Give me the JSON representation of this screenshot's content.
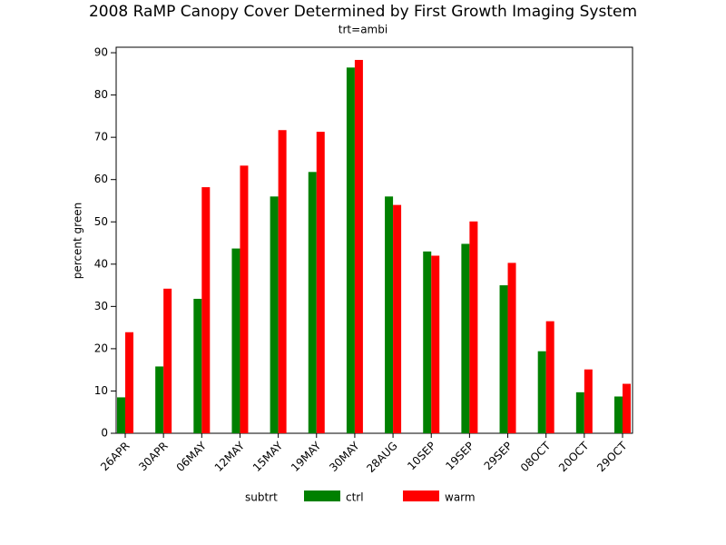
{
  "chart_data": {
    "type": "bar",
    "title": "2008 RaMP Canopy Cover Determined by First Growth Imaging System",
    "subtitle": "trt=ambi",
    "y_label": "percent green",
    "legend_title": "subtrt",
    "categories": [
      "26APR",
      "30APR",
      "06MAY",
      "12MAY",
      "15MAY",
      "19MAY",
      "30MAY",
      "28AUG",
      "10SEP",
      "19SEP",
      "29SEP",
      "08OCT",
      "20OCT",
      "29OCT"
    ],
    "series": [
      {
        "name": "ctrl",
        "color": "#008000",
        "values": [
          8.5,
          15.8,
          31.8,
          43.7,
          56,
          61.8,
          86.5,
          56,
          43,
          44.8,
          35,
          19.4,
          9.7,
          8.7
        ]
      },
      {
        "name": "warm",
        "color": "#ff0000",
        "values": [
          23.9,
          34.2,
          58.2,
          63.3,
          71.7,
          71.3,
          88.3,
          54,
          42,
          50.1,
          40.3,
          26.5,
          15.1,
          11.7
        ]
      }
    ],
    "ylim": [
      0,
      91.3
    ],
    "yticks": [
      0,
      10,
      20,
      30,
      40,
      50,
      60,
      70,
      80,
      90
    ]
  }
}
